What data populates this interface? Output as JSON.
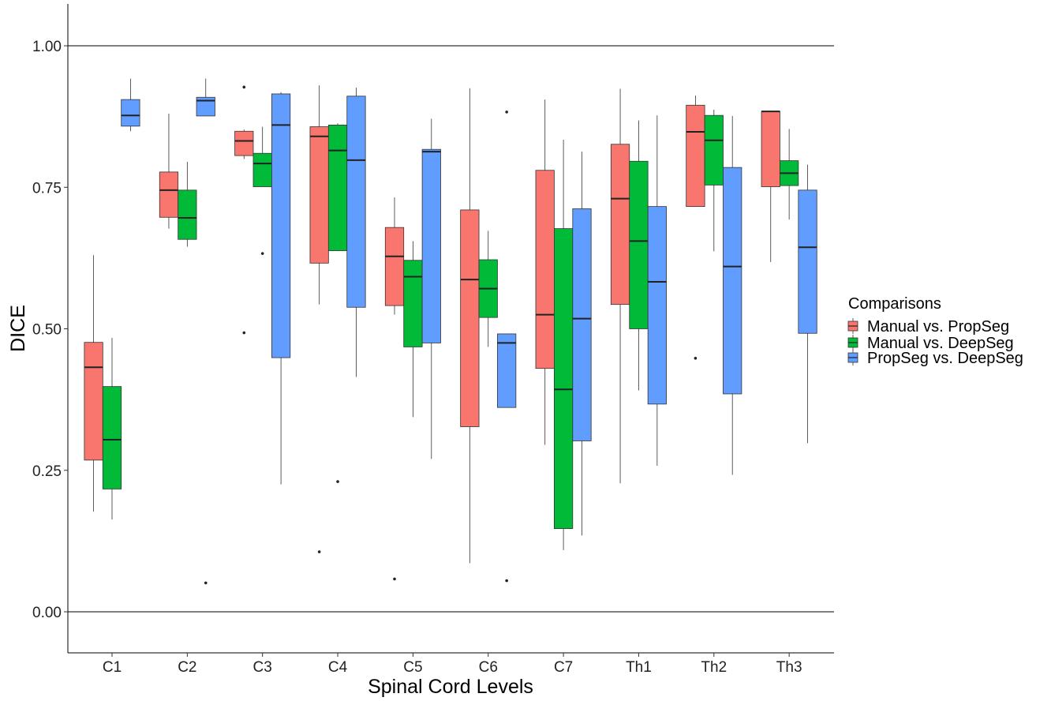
{
  "chart_data": {
    "type": "boxplot",
    "xlabel": "Spinal Cord Levels",
    "ylabel": "DICE",
    "ylim": [
      -0.07,
      1.07
    ],
    "yticks": [
      0.0,
      0.25,
      0.5,
      0.75,
      1.0
    ],
    "ytick_labels": [
      "0.00",
      "0.25",
      "0.50",
      "0.75",
      "1.00"
    ],
    "hlines": [
      0.0,
      1.0
    ],
    "grid": false,
    "legend_position": "right",
    "legend_title": "Comparisons",
    "categories": [
      "C1",
      "C2",
      "C3",
      "C4",
      "C5",
      "C6",
      "C7",
      "Th1",
      "Th2",
      "Th3"
    ],
    "series": [
      {
        "name": "Manual vs. PropSeg",
        "color": "#F8766D",
        "boxes": [
          {
            "min": 0.177,
            "q1": 0.268,
            "median": 0.432,
            "q3": 0.476,
            "max": 0.63,
            "outliers": []
          },
          {
            "min": 0.677,
            "q1": 0.697,
            "median": 0.745,
            "q3": 0.777,
            "max": 0.88,
            "outliers": []
          },
          {
            "min": 0.8,
            "q1": 0.806,
            "median": 0.832,
            "q3": 0.849,
            "max": 0.852,
            "outliers": [
              0.927,
              0.493
            ]
          },
          {
            "min": 0.543,
            "q1": 0.616,
            "median": 0.84,
            "q3": 0.857,
            "max": 0.93,
            "outliers": [
              0.106
            ]
          },
          {
            "min": 0.525,
            "q1": 0.541,
            "median": 0.628,
            "q3": 0.679,
            "max": 0.732,
            "outliers": [
              0.058
            ]
          },
          {
            "min": 0.086,
            "q1": 0.327,
            "median": 0.587,
            "q3": 0.71,
            "max": 0.925,
            "outliers": []
          },
          {
            "min": 0.295,
            "q1": 0.43,
            "median": 0.525,
            "q3": 0.78,
            "max": 0.905,
            "outliers": []
          },
          {
            "min": 0.227,
            "q1": 0.543,
            "median": 0.73,
            "q3": 0.826,
            "max": 0.924,
            "outliers": []
          },
          {
            "min": 0.716,
            "q1": 0.716,
            "median": 0.848,
            "q3": 0.895,
            "max": 0.912,
            "outliers": [
              0.448
            ]
          },
          {
            "min": 0.618,
            "q1": 0.751,
            "median": 0.884,
            "q3": 0.884,
            "max": 0.884,
            "outliers": []
          }
        ]
      },
      {
        "name": "Manual vs. DeepSeg",
        "color": "#00BA38",
        "boxes": [
          {
            "min": 0.163,
            "q1": 0.217,
            "median": 0.304,
            "q3": 0.398,
            "max": 0.484,
            "outliers": []
          },
          {
            "min": 0.645,
            "q1": 0.658,
            "median": 0.696,
            "q3": 0.745,
            "max": 0.795,
            "outliers": []
          },
          {
            "min": 0.751,
            "q1": 0.751,
            "median": 0.792,
            "q3": 0.81,
            "max": 0.857,
            "outliers": [
              0.633
            ]
          },
          {
            "min": 0.638,
            "q1": 0.638,
            "median": 0.815,
            "q3": 0.86,
            "max": 0.863,
            "outliers": [
              0.23
            ]
          },
          {
            "min": 0.344,
            "q1": 0.468,
            "median": 0.592,
            "q3": 0.621,
            "max": 0.655,
            "outliers": []
          },
          {
            "min": 0.468,
            "q1": 0.52,
            "median": 0.571,
            "q3": 0.622,
            "max": 0.673,
            "outliers": []
          },
          {
            "min": 0.109,
            "q1": 0.147,
            "median": 0.393,
            "q3": 0.677,
            "max": 0.834,
            "outliers": []
          },
          {
            "min": 0.391,
            "q1": 0.5,
            "median": 0.655,
            "q3": 0.796,
            "max": 0.868,
            "outliers": []
          },
          {
            "min": 0.637,
            "q1": 0.754,
            "median": 0.833,
            "q3": 0.877,
            "max": 0.887,
            "outliers": []
          },
          {
            "min": 0.693,
            "q1": 0.753,
            "median": 0.775,
            "q3": 0.797,
            "max": 0.853,
            "outliers": []
          }
        ]
      },
      {
        "name": "PropSeg vs. DeepSeg",
        "color": "#619CFF",
        "boxes": [
          {
            "min": 0.849,
            "q1": 0.858,
            "median": 0.877,
            "q3": 0.905,
            "max": 0.942,
            "outliers": []
          },
          {
            "min": 0.876,
            "q1": 0.876,
            "median": 0.903,
            "q3": 0.909,
            "max": 0.942,
            "outliers": [
              0.051
            ]
          },
          {
            "min": 0.225,
            "q1": 0.449,
            "median": 0.86,
            "q3": 0.915,
            "max": 0.918,
            "outliers": []
          },
          {
            "min": 0.415,
            "q1": 0.538,
            "median": 0.798,
            "q3": 0.911,
            "max": 0.926,
            "outliers": []
          },
          {
            "min": 0.27,
            "q1": 0.475,
            "median": 0.813,
            "q3": 0.817,
            "max": 0.871,
            "outliers": []
          },
          {
            "min": 0.361,
            "q1": 0.361,
            "median": 0.475,
            "q3": 0.491,
            "max": 0.491,
            "outliers": [
              0.883,
              0.055
            ]
          },
          {
            "min": 0.135,
            "q1": 0.302,
            "median": 0.518,
            "q3": 0.712,
            "max": 0.813,
            "outliers": []
          },
          {
            "min": 0.258,
            "q1": 0.367,
            "median": 0.583,
            "q3": 0.716,
            "max": 0.877,
            "outliers": []
          },
          {
            "min": 0.242,
            "q1": 0.385,
            "median": 0.61,
            "q3": 0.785,
            "max": 0.876,
            "outliers": []
          },
          {
            "min": 0.298,
            "q1": 0.492,
            "median": 0.644,
            "q3": 0.745,
            "max": 0.79,
            "outliers": []
          }
        ]
      }
    ]
  }
}
